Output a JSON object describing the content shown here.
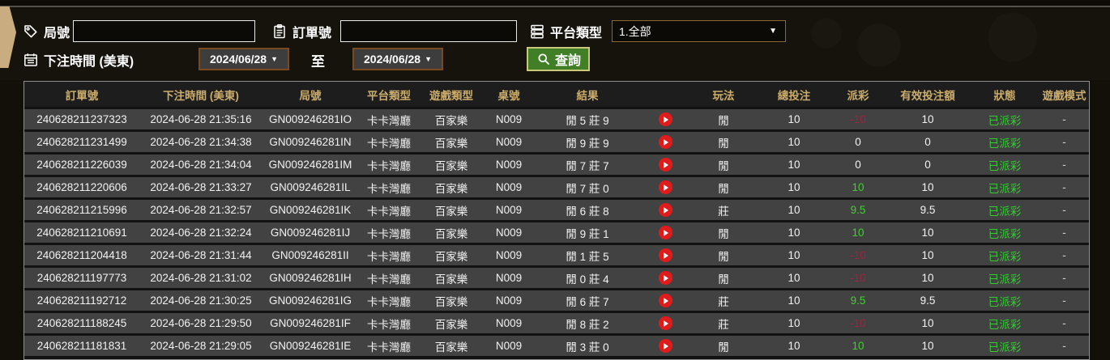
{
  "filters": {
    "round_label": "局號",
    "order_label": "訂單號",
    "platform_label": "平台類型",
    "platform_value": "1.全部",
    "bet_time_label": "下注時間 (美東)",
    "date_from": "2024/06/28",
    "date_to": "2024/06/28",
    "to_label": "至",
    "search_label": "查詢",
    "dropdown_arrow": "▼"
  },
  "colors": {
    "header_text": "#ccad6b",
    "payout_positive": "#41cf2e",
    "payout_negative": "#9e2340",
    "status_green": "#2fd02f",
    "search_button_green": "#417f27",
    "play_button_red": "#e01b1b",
    "date_border_brown": "#7a4a1e",
    "ribbon_tan": "#c9ac80"
  },
  "table": {
    "headers": [
      "訂單號",
      "下注時間 (美東)",
      "局號",
      "平台類型",
      "遊戲類型",
      "桌號",
      "結果",
      "",
      "玩法",
      "總投注",
      "派彩",
      "有效投注額",
      "狀態",
      "遊戲模式"
    ],
    "rows": [
      {
        "order": "240628211237323",
        "time": "2024-06-28 21:35:16",
        "round": "GN009246281IO",
        "platform": "卡卡灣廳",
        "game": "百家樂",
        "table_no": "N009",
        "result": "閒 5 莊 9",
        "play_type": "閒",
        "total": "10",
        "payout": "-10",
        "payout_class": "neg",
        "valid": "10",
        "status": "已派彩",
        "mode": "-"
      },
      {
        "order": "240628211231499",
        "time": "2024-06-28 21:34:38",
        "round": "GN009246281IN",
        "platform": "卡卡灣廳",
        "game": "百家樂",
        "table_no": "N009",
        "result": "閒 9 莊 9",
        "play_type": "閒",
        "total": "10",
        "payout": "0",
        "payout_class": "zero",
        "valid": "0",
        "status": "已派彩",
        "mode": "-"
      },
      {
        "order": "240628211226039",
        "time": "2024-06-28 21:34:04",
        "round": "GN009246281IM",
        "platform": "卡卡灣廳",
        "game": "百家樂",
        "table_no": "N009",
        "result": "閒 7 莊 7",
        "play_type": "閒",
        "total": "10",
        "payout": "0",
        "payout_class": "zero",
        "valid": "0",
        "status": "已派彩",
        "mode": "-"
      },
      {
        "order": "240628211220606",
        "time": "2024-06-28 21:33:27",
        "round": "GN009246281IL",
        "platform": "卡卡灣廳",
        "game": "百家樂",
        "table_no": "N009",
        "result": "閒 7 莊 0",
        "play_type": "閒",
        "total": "10",
        "payout": "10",
        "payout_class": "pos",
        "valid": "10",
        "status": "已派彩",
        "mode": "-"
      },
      {
        "order": "240628211215996",
        "time": "2024-06-28 21:32:57",
        "round": "GN009246281IK",
        "platform": "卡卡灣廳",
        "game": "百家樂",
        "table_no": "N009",
        "result": "閒 6 莊 8",
        "play_type": "莊",
        "total": "10",
        "payout": "9.5",
        "payout_class": "pos",
        "valid": "9.5",
        "status": "已派彩",
        "mode": "-"
      },
      {
        "order": "240628211210691",
        "time": "2024-06-28 21:32:24",
        "round": "GN009246281IJ",
        "platform": "卡卡灣廳",
        "game": "百家樂",
        "table_no": "N009",
        "result": "閒 9 莊 1",
        "play_type": "閒",
        "total": "10",
        "payout": "10",
        "payout_class": "pos",
        "valid": "10",
        "status": "已派彩",
        "mode": "-"
      },
      {
        "order": "240628211204418",
        "time": "2024-06-28 21:31:44",
        "round": "GN009246281II",
        "platform": "卡卡灣廳",
        "game": "百家樂",
        "table_no": "N009",
        "result": "閒 1 莊 5",
        "play_type": "閒",
        "total": "10",
        "payout": "-10",
        "payout_class": "neg",
        "valid": "10",
        "status": "已派彩",
        "mode": "-"
      },
      {
        "order": "240628211197773",
        "time": "2024-06-28 21:31:02",
        "round": "GN009246281IH",
        "platform": "卡卡灣廳",
        "game": "百家樂",
        "table_no": "N009",
        "result": "閒 0 莊 4",
        "play_type": "閒",
        "total": "10",
        "payout": "-10",
        "payout_class": "neg",
        "valid": "10",
        "status": "已派彩",
        "mode": "-"
      },
      {
        "order": "240628211192712",
        "time": "2024-06-28 21:30:25",
        "round": "GN009246281IG",
        "platform": "卡卡灣廳",
        "game": "百家樂",
        "table_no": "N009",
        "result": "閒 6 莊 7",
        "play_type": "莊",
        "total": "10",
        "payout": "9.5",
        "payout_class": "pos",
        "valid": "9.5",
        "status": "已派彩",
        "mode": "-"
      },
      {
        "order": "240628211188245",
        "time": "2024-06-28 21:29:50",
        "round": "GN009246281IF",
        "platform": "卡卡灣廳",
        "game": "百家樂",
        "table_no": "N009",
        "result": "閒 8 莊 2",
        "play_type": "莊",
        "total": "10",
        "payout": "-10",
        "payout_class": "neg",
        "valid": "10",
        "status": "已派彩",
        "mode": "-"
      },
      {
        "order": "240628211181831",
        "time": "2024-06-28 21:29:05",
        "round": "GN009246281IE",
        "platform": "卡卡灣廳",
        "game": "百家樂",
        "table_no": "N009",
        "result": "閒 3 莊 0",
        "play_type": "閒",
        "total": "10",
        "payout": "10",
        "payout_class": "pos",
        "valid": "10",
        "status": "已派彩",
        "mode": "-"
      }
    ]
  }
}
